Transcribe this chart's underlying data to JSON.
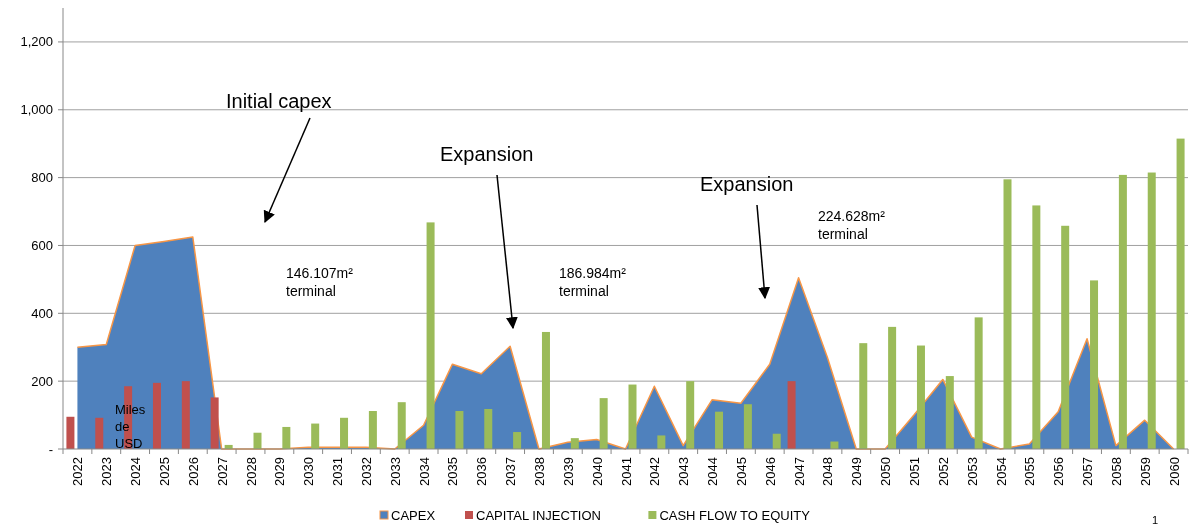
{
  "chart_data": {
    "type": "bar",
    "ylabel": "Miles de USD",
    "categories": [
      "2022",
      "2023",
      "2024",
      "2025",
      "2026",
      "2027",
      "2028",
      "2029",
      "2030",
      "2031",
      "2032",
      "2033",
      "2034",
      "2035",
      "2036",
      "2037",
      "2038",
      "2039",
      "2040",
      "2041",
      "2042",
      "2043",
      "2044",
      "2045",
      "2046",
      "2047",
      "2048",
      "2049",
      "2050",
      "2051",
      "2052",
      "2053",
      "2054",
      "2055",
      "2056",
      "2057",
      "2058",
      "2059",
      "2060"
    ],
    "series": [
      {
        "name": "CAPEX",
        "type": "area",
        "color": "#4f81bd",
        "values": [
          300,
          308,
          600,
          612,
          625,
          0,
          0,
          0,
          5,
          5,
          5,
          0,
          70,
          250,
          222,
          303,
          0,
          20,
          28,
          0,
          185,
          10,
          145,
          135,
          250,
          505,
          270,
          0,
          0,
          100,
          205,
          35,
          0,
          15,
          110,
          325,
          10,
          85,
          0
        ]
      },
      {
        "name": "CAPITAL INJECTION",
        "color": "#c0504d",
        "values": [
          95,
          92,
          185,
          195,
          200,
          152,
          null,
          null,
          null,
          null,
          null,
          null,
          null,
          null,
          null,
          null,
          null,
          null,
          null,
          null,
          null,
          null,
          null,
          null,
          null,
          200,
          null,
          null,
          null,
          null,
          null,
          null,
          null,
          null,
          null,
          null,
          null,
          null,
          null
        ]
      },
      {
        "name": "CASH FLOW TO EQUITY",
        "color": "#9bbb59",
        "values": [
          null,
          null,
          null,
          null,
          null,
          12,
          48,
          65,
          75,
          92,
          112,
          138,
          668,
          112,
          118,
          50,
          345,
          32,
          150,
          190,
          40,
          200,
          110,
          132,
          45,
          null,
          22,
          312,
          360,
          305,
          215,
          388,
          795,
          718,
          658,
          497,
          808,
          815,
          915
        ]
      }
    ],
    "ylim": [
      0,
      1300
    ],
    "yticks": [
      {
        "value": 0,
        "label": "-"
      },
      200,
      400,
      600,
      800,
      {
        "value": 1000,
        "label": "1,000"
      },
      {
        "value": 1200,
        "label": "1,200"
      }
    ],
    "grid": "y",
    "legend": "bottom",
    "annotations": [
      "Initial capex",
      "Expansion",
      "Expansion",
      "146.107m²\nterminal",
      "186.984m²\nterminal",
      "224.628m²\nterminal",
      "1"
    ]
  }
}
